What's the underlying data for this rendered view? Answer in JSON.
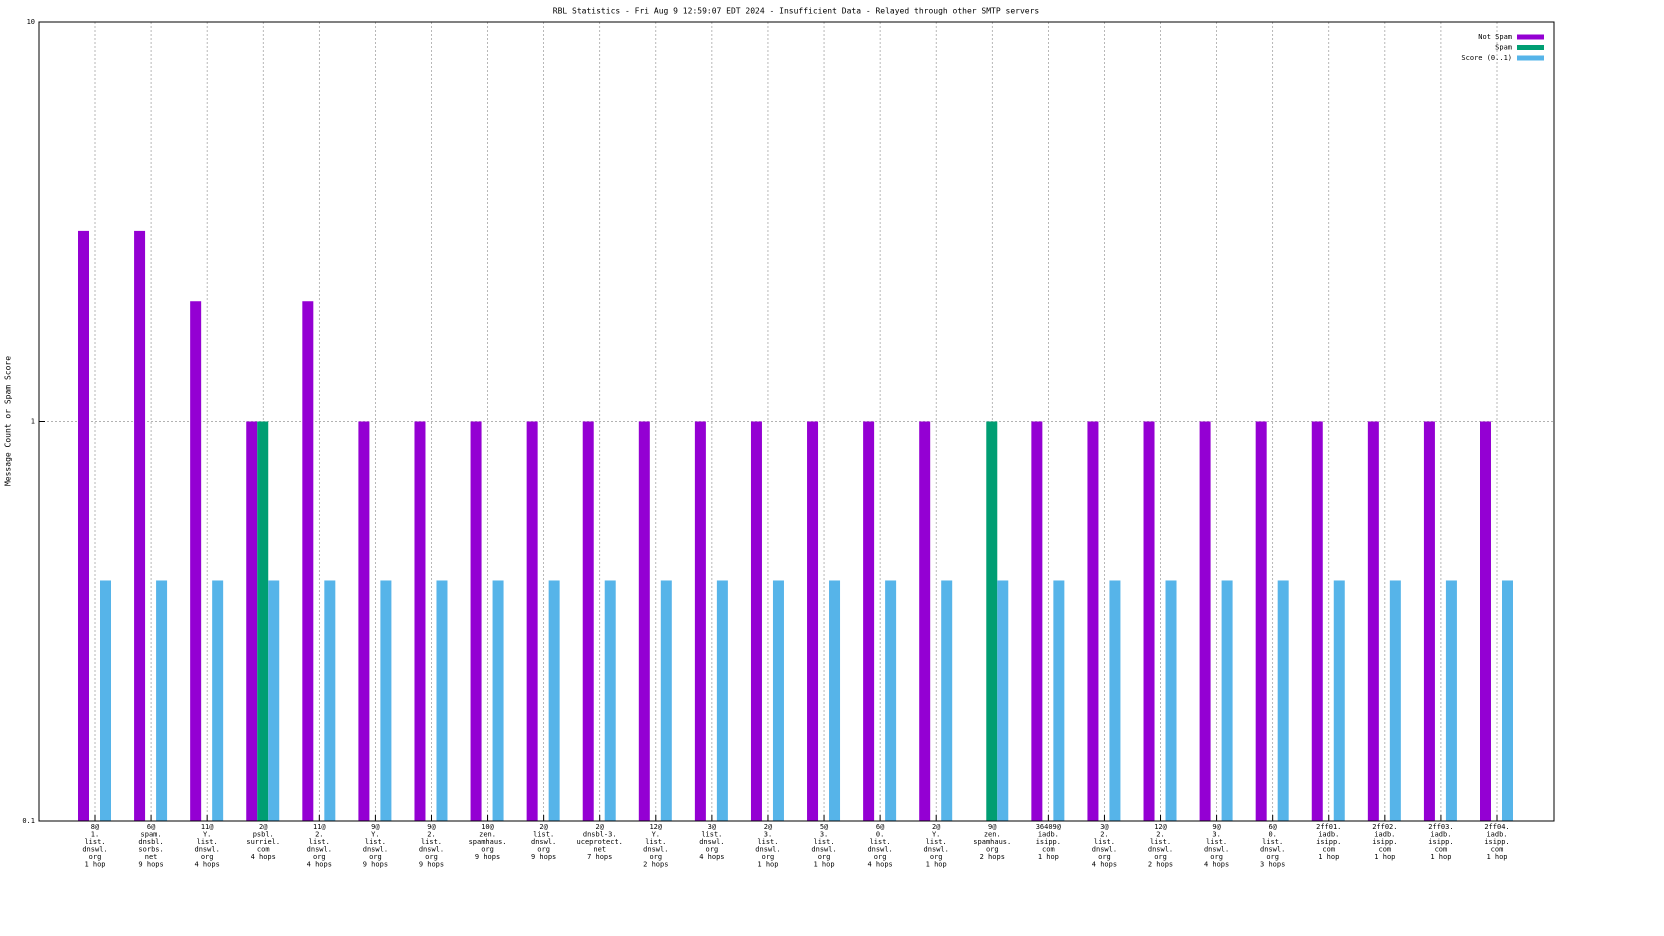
{
  "chart_data": {
    "type": "bar",
    "title": "RBL Statistics - Fri Aug  9 12:59:07 EDT 2024 - Insufficient Data - Relayed through other SMTP servers",
    "y_label": "Message Count or Spam Score",
    "log_scale": true,
    "grid": true,
    "legend": "top-right",
    "ylim": [
      0.1,
      10
    ],
    "yticks": [
      0.1,
      1,
      10
    ],
    "categories": [
      [
        "8@",
        "1.",
        "list.",
        "dnswl.",
        "org",
        "1 hop"
      ],
      [
        "6@",
        "spam.",
        "dnsbl.",
        "sorbs.",
        "net",
        "9 hops"
      ],
      [
        "11@",
        "Y.",
        "list.",
        "dnswl.",
        "org",
        "4 hops"
      ],
      [
        "2@",
        "psbl.",
        "surriel.",
        "com",
        "4 hops"
      ],
      [
        "11@",
        "2.",
        "list.",
        "dnswl.",
        "org",
        "4 hops"
      ],
      [
        "9@",
        "Y.",
        "list.",
        "dnswl.",
        "org",
        "9 hops"
      ],
      [
        "9@",
        "2.",
        "list.",
        "dnswl.",
        "org",
        "9 hops"
      ],
      [
        "10@",
        "zen.",
        "spamhaus.",
        "org",
        "9 hops"
      ],
      [
        "2@",
        "list.",
        "dnswl.",
        "org",
        "9 hops"
      ],
      [
        "2@",
        "dnsbl-3.",
        "uceprotect.",
        "net",
        "7 hops"
      ],
      [
        "12@",
        "Y.",
        "list.",
        "dnswl.",
        "org",
        "2 hops"
      ],
      [
        "3@",
        "list.",
        "dnswl.",
        "org",
        "4 hops"
      ],
      [
        "2@",
        "3.",
        "list.",
        "dnswl.",
        "org",
        "1 hop"
      ],
      [
        "5@",
        "3.",
        "list.",
        "dnswl.",
        "org",
        "1 hop"
      ],
      [
        "6@",
        "0.",
        "list.",
        "dnswl.",
        "org",
        "4 hops"
      ],
      [
        "2@",
        "Y.",
        "list.",
        "dnswl.",
        "org",
        "1 hop"
      ],
      [
        "9@",
        "zen.",
        "spamhaus.",
        "org",
        "2 hops"
      ],
      [
        "36409@",
        "iadb.",
        "isipp.",
        "com",
        "1 hop"
      ],
      [
        "3@",
        "2.",
        "list.",
        "dnswl.",
        "org",
        "4 hops"
      ],
      [
        "12@",
        "2.",
        "list.",
        "dnswl.",
        "org",
        "2 hops"
      ],
      [
        "9@",
        "3.",
        "list.",
        "dnswl.",
        "org",
        "4 hops"
      ],
      [
        "6@",
        "0.",
        "list.",
        "dnswl.",
        "org",
        "3 hops"
      ],
      [
        "2ff01.",
        "iadb.",
        "isipp.",
        "com",
        "1 hop"
      ],
      [
        "2ff02.",
        "iadb.",
        "isipp.",
        "com",
        "1 hop"
      ],
      [
        "2ff03.",
        "iadb.",
        "isipp.",
        "com",
        "1 hop"
      ],
      [
        "2ff04.",
        "iadb.",
        "isipp.",
        "com",
        "1 hop"
      ]
    ],
    "series": [
      {
        "name": "Not Spam",
        "color": "#9400d3",
        "values": [
          3,
          3,
          2,
          1,
          2,
          1,
          1,
          1,
          1,
          1,
          1,
          1,
          1,
          1,
          1,
          1,
          null,
          1,
          1,
          1,
          1,
          1,
          1,
          1,
          1,
          1
        ]
      },
      {
        "name": "Spam",
        "color": "#009e73",
        "values": [
          null,
          null,
          null,
          1,
          null,
          null,
          null,
          null,
          null,
          null,
          null,
          null,
          null,
          null,
          null,
          null,
          1,
          null,
          null,
          null,
          null,
          null,
          null,
          null,
          null,
          null
        ]
      },
      {
        "name": "Score (0..1)",
        "color": "#56b4e9",
        "values": [
          0.4,
          0.4,
          0.4,
          0.4,
          0.4,
          0.4,
          0.4,
          0.4,
          0.4,
          0.4,
          0.4,
          0.4,
          0.4,
          0.4,
          0.4,
          0.4,
          0.4,
          0.4,
          0.4,
          0.4,
          0.4,
          0.4,
          0.4,
          0.4,
          0.4,
          0.4
        ]
      }
    ]
  }
}
